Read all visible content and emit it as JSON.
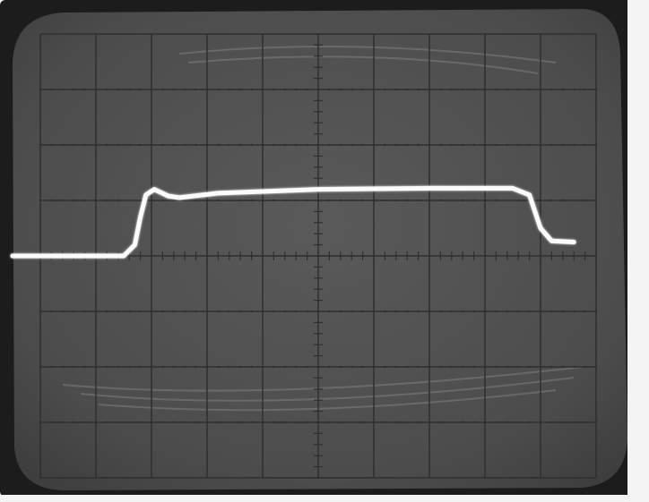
{
  "scene": {
    "subject": "oscilloscope-crt-screen",
    "graticule": {
      "divisions_x": 10,
      "divisions_y": 8,
      "minor_ticks_per_division": 5
    },
    "colors": {
      "background": "#f4f4f4",
      "bezel": "#1c1c1c",
      "screen": "#4e4e4e",
      "graticule": "#2f2f2f",
      "trace": "#fbfbfb"
    },
    "trace": {
      "shape": "rectangular-pulse",
      "points": [
        [
          -2.5,
          0.0
        ],
        [
          -0.5,
          0.0
        ],
        [
          -0.3,
          0.2
        ],
        [
          -0.2,
          0.7
        ],
        [
          -0.1,
          1.1
        ],
        [
          0.05,
          1.2
        ],
        [
          0.3,
          1.08
        ],
        [
          0.5,
          1.05
        ],
        [
          1.2,
          1.13
        ],
        [
          3.0,
          1.2
        ],
        [
          5.0,
          1.22
        ],
        [
          6.5,
          1.22
        ],
        [
          6.8,
          1.1
        ],
        [
          7.0,
          0.5
        ],
        [
          7.2,
          0.27
        ],
        [
          7.6,
          0.25
        ]
      ]
    }
  }
}
